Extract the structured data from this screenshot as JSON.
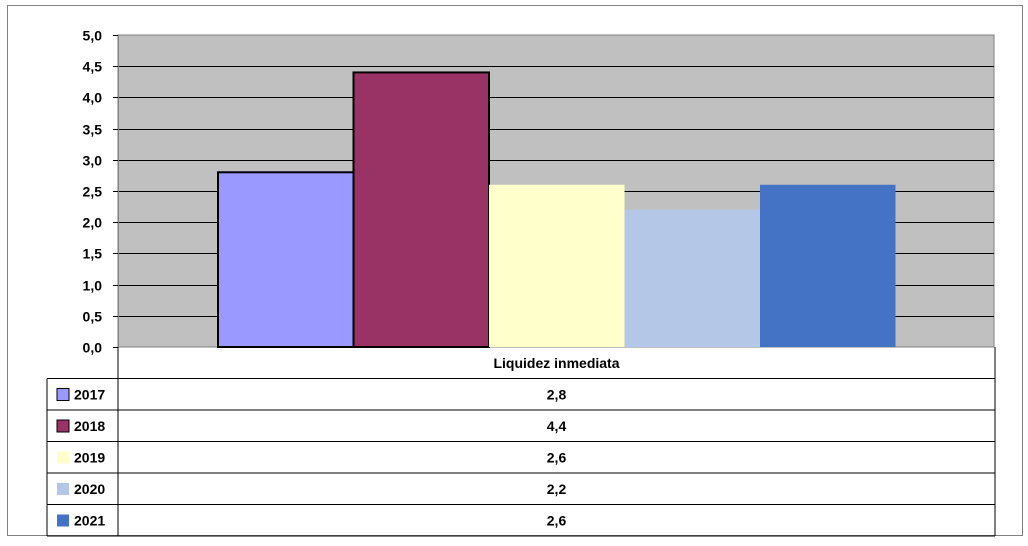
{
  "chart_data": {
    "type": "bar",
    "categories": [
      "Liquidez inmediata"
    ],
    "series": [
      {
        "name": "2017",
        "values": [
          2.8
        ],
        "color": "#9999ff",
        "label": "2,8"
      },
      {
        "name": "2018",
        "values": [
          4.4
        ],
        "color": "#993366",
        "label": "4,4"
      },
      {
        "name": "2019",
        "values": [
          2.6
        ],
        "color": "#ffffcc",
        "label": "2,6"
      },
      {
        "name": "2020",
        "values": [
          2.2
        ],
        "color": "#b4c7e7",
        "label": "2,2"
      },
      {
        "name": "2021",
        "values": [
          2.6
        ],
        "color": "#4472c4",
        "label": "2,6"
      }
    ],
    "ylim": [
      0,
      5
    ],
    "yticks": [
      "0,0",
      "0,5",
      "1,0",
      "1,5",
      "2,0",
      "2,5",
      "3,0",
      "3,5",
      "4,0",
      "4,5",
      "5,0"
    ],
    "grid": true,
    "plot_background": "#c0c0c0",
    "legend": "data-table-below"
  }
}
